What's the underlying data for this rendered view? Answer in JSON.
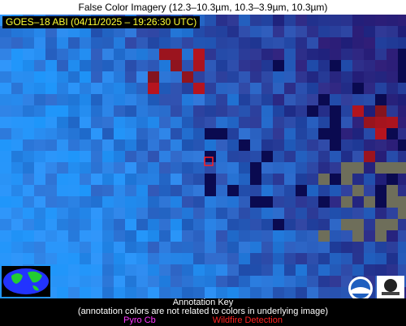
{
  "header": {
    "title": "False Color Imagery (12.3–10.3µm, 10.3–3.9µm, 10.3µm)"
  },
  "image": {
    "label": "GOES–18 ABI (04/11/2025 – 19:26:30 UTC)"
  },
  "key": {
    "title": "Annotation Key",
    "note": "(annotation colors are not related to colors in underlying image)",
    "items": [
      "Pyro Cb",
      "Wildfire Detection"
    ]
  }
}
